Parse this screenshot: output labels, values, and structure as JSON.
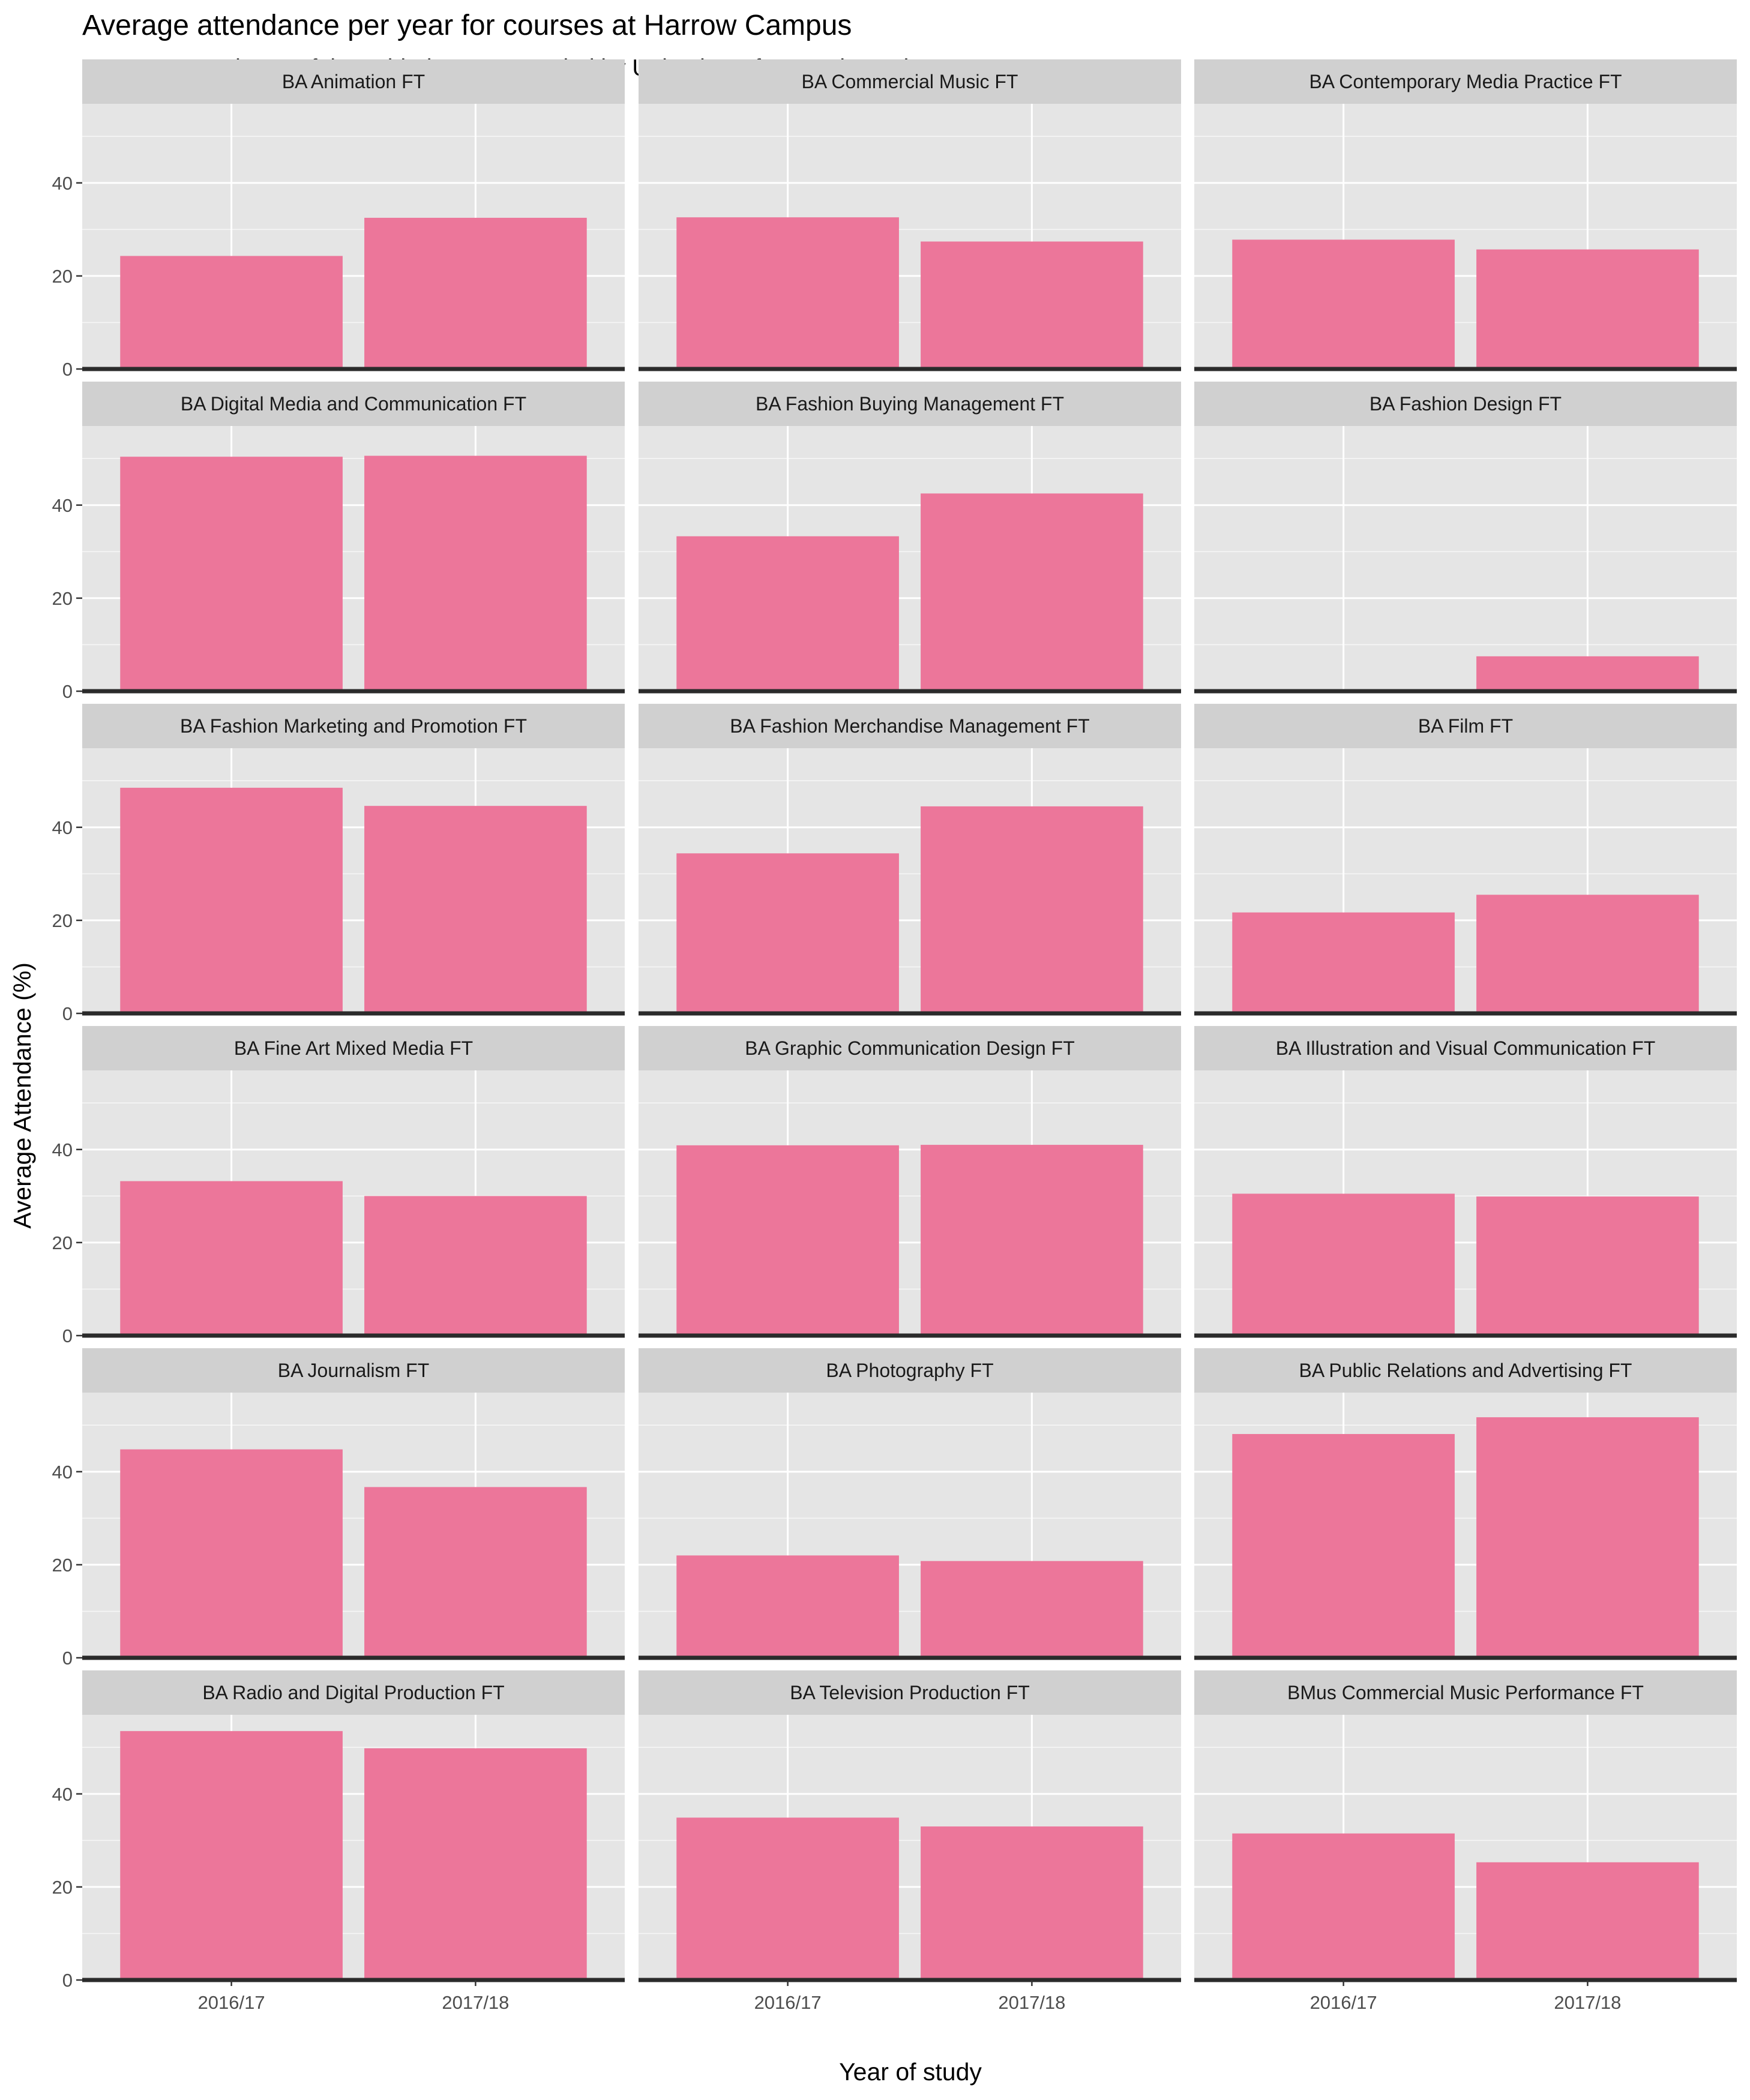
{
  "chart_data": {
    "type": "bar",
    "title": "Average attendance per year for courses at Harrow Campus",
    "subtitle": "Average attendance of timetabled event recorded by Univeristy of Westminster by Course",
    "xlabel": "Year of study",
    "ylabel": "Average Attendance (%)",
    "categories": [
      "2016/17",
      "2017/18"
    ],
    "ylim": [
      0,
      57
    ],
    "yticks": [
      0,
      20,
      40
    ],
    "grid": true,
    "facets": [
      {
        "name": "BA Animation FT",
        "values": [
          24.3,
          32.5
        ]
      },
      {
        "name": "BA Commercial Music FT",
        "values": [
          32.6,
          27.4
        ]
      },
      {
        "name": "BA Contemporary Media Practice FT",
        "values": [
          27.8,
          25.7
        ]
      },
      {
        "name": "BA Digital Media and Communication FT",
        "values": [
          50.4,
          50.6
        ]
      },
      {
        "name": "BA Fashion Buying Management FT",
        "values": [
          33.3,
          42.5
        ]
      },
      {
        "name": "BA Fashion Design FT",
        "values": [
          null,
          7.5
        ]
      },
      {
        "name": "BA Fashion Marketing and Promotion FT",
        "values": [
          48.5,
          44.6
        ]
      },
      {
        "name": "BA Fashion Merchandise Management FT",
        "values": [
          34.4,
          44.5
        ]
      },
      {
        "name": "BA Film FT",
        "values": [
          21.7,
          25.5
        ]
      },
      {
        "name": "BA Fine Art Mixed Media FT",
        "values": [
          33.2,
          30.0
        ]
      },
      {
        "name": "BA Graphic Communication Design FT",
        "values": [
          40.9,
          41.0
        ]
      },
      {
        "name": "BA Illustration and Visual Communication FT",
        "values": [
          30.5,
          29.9
        ]
      },
      {
        "name": "BA Journalism FT",
        "values": [
          44.8,
          36.7
        ]
      },
      {
        "name": "BA Photography FT",
        "values": [
          22.0,
          20.8
        ]
      },
      {
        "name": "BA Public Relations and Advertising FT",
        "values": [
          48.1,
          51.7
        ]
      },
      {
        "name": "BA Radio and Digital Production FT",
        "values": [
          53.5,
          49.8
        ]
      },
      {
        "name": "BA Television Production FT",
        "values": [
          34.9,
          33.0
        ]
      },
      {
        "name": "BMus Commercial Music Performance FT",
        "values": [
          31.5,
          25.3
        ]
      }
    ],
    "colors": {
      "bar": "#EC769A",
      "panel": "#E5E5E5",
      "strip": "#D0D0D0",
      "grid": "#FFFFFF",
      "baseline": "#2B2B2B"
    }
  }
}
